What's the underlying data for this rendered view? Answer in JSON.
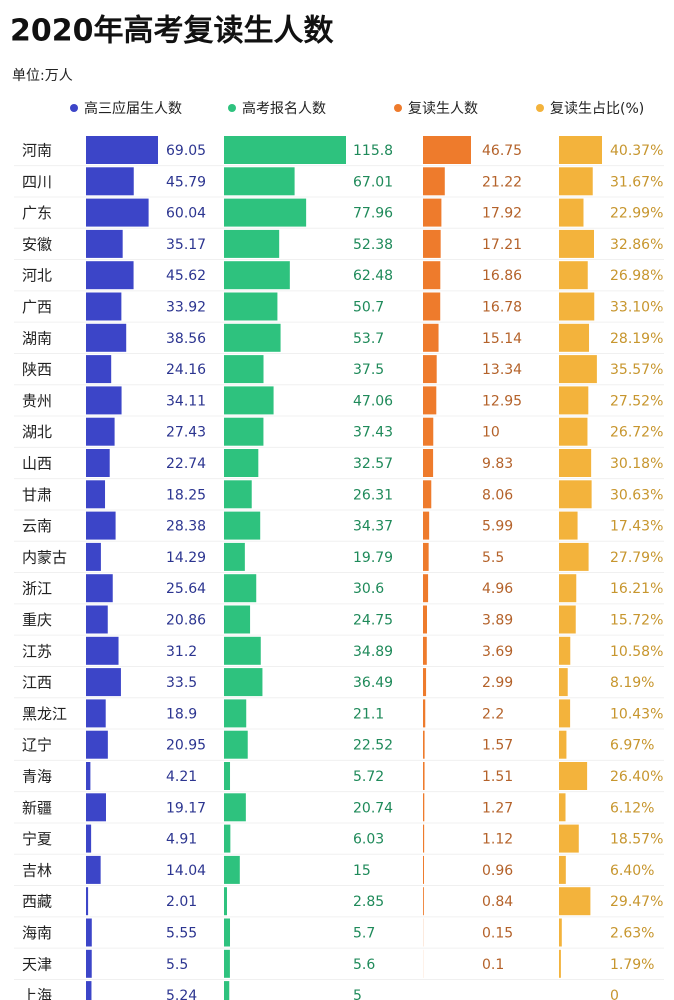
{
  "chart_data": {
    "type": "bar",
    "title": "2020年高考复读生人数",
    "subtitle": "单位:万人",
    "categories": [
      "河南",
      "四川",
      "广东",
      "安徽",
      "河北",
      "广西",
      "湖南",
      "陕西",
      "贵州",
      "湖北",
      "山西",
      "甘肃",
      "云南",
      "内蒙古",
      "浙江",
      "重庆",
      "江苏",
      "江西",
      "黑龙江",
      "辽宁",
      "青海",
      "新疆",
      "宁夏",
      "吉林",
      "西藏",
      "海南",
      "天津",
      "上海"
    ],
    "series": [
      {
        "name": "高三应届生人数",
        "color": "#3c45c8",
        "text_color": "#2c3590",
        "values": [
          69.05,
          45.79,
          60.04,
          35.17,
          45.62,
          33.92,
          38.56,
          24.16,
          34.11,
          27.43,
          22.74,
          18.25,
          28.38,
          14.29,
          25.64,
          20.86,
          31.2,
          33.5,
          18.9,
          20.95,
          4.21,
          19.17,
          4.91,
          14.04,
          2.01,
          5.55,
          5.5,
          5.24
        ]
      },
      {
        "name": "高考报名人数",
        "color": "#2ec27e",
        "text_color": "#1f8a5a",
        "values": [
          115.8,
          67.01,
          77.96,
          52.38,
          62.48,
          50.7,
          53.7,
          37.5,
          47.06,
          37.43,
          32.57,
          26.31,
          34.37,
          19.79,
          30.6,
          24.75,
          34.89,
          36.49,
          21.1,
          22.52,
          5.72,
          20.74,
          6.03,
          15,
          2.85,
          5.7,
          5.6,
          5
        ]
      },
      {
        "name": "复读生人数",
        "color": "#ee7b2c",
        "text_color": "#b4622a",
        "values": [
          46.75,
          21.22,
          17.92,
          17.21,
          16.86,
          16.78,
          15.14,
          13.34,
          12.95,
          10,
          9.83,
          8.06,
          5.99,
          5.5,
          4.96,
          3.89,
          3.69,
          2.99,
          2.2,
          1.57,
          1.51,
          1.27,
          1.12,
          0.96,
          0.84,
          0.15,
          0.1,
          null
        ]
      },
      {
        "name": "复读生占比(%)",
        "color": "#f3b33c",
        "text_color": "#c7962e",
        "values": [
          40.37,
          31.67,
          22.99,
          32.86,
          26.98,
          33.1,
          28.19,
          35.57,
          27.52,
          26.72,
          30.18,
          30.63,
          17.43,
          27.79,
          16.21,
          15.72,
          10.58,
          8.19,
          10.43,
          6.97,
          26.4,
          6.12,
          18.57,
          6.4,
          29.47,
          2.63,
          1.79,
          0
        ],
        "value_labels": [
          "40.37%",
          "31.67%",
          "22.99%",
          "32.86%",
          "26.98%",
          "33.10%",
          "28.19%",
          "35.57%",
          "27.52%",
          "26.72%",
          "30.18%",
          "30.63%",
          "17.43%",
          "27.79%",
          "16.21%",
          "15.72%",
          "10.58%",
          "8.19%",
          "10.43%",
          "6.97%",
          "26.40%",
          "6.12%",
          "18.57%",
          "6.40%",
          "29.47%",
          "2.63%",
          "1.79%",
          "0"
        ]
      }
    ]
  }
}
